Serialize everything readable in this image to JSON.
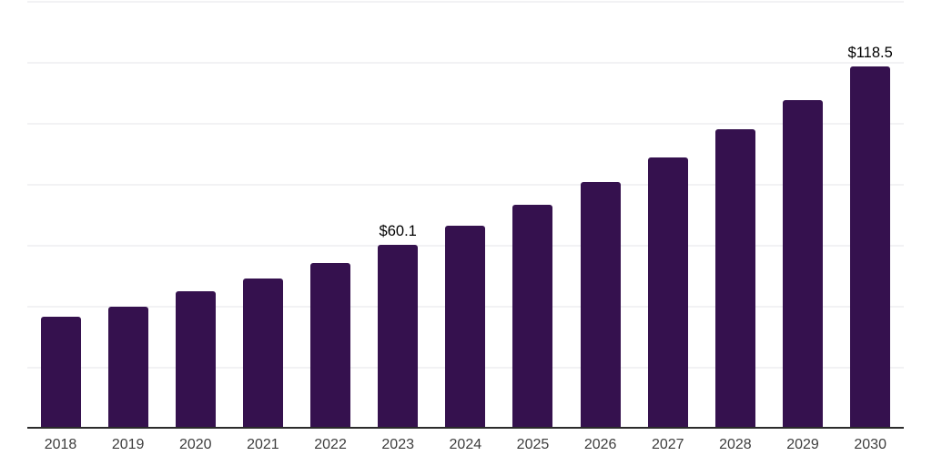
{
  "chart_data": {
    "type": "bar",
    "categories": [
      "2018",
      "2019",
      "2020",
      "2021",
      "2022",
      "2023",
      "2024",
      "2025",
      "2026",
      "2027",
      "2028",
      "2029",
      "2030"
    ],
    "values": [
      36.4,
      39.7,
      44.8,
      49.0,
      54.0,
      60.1,
      66.3,
      73.1,
      80.6,
      88.7,
      97.9,
      107.5,
      118.5
    ],
    "data_labels": {
      "2023": "$60.1",
      "2030": "$118.5"
    },
    "value_prefix": "$",
    "xlabel": "",
    "ylabel": "",
    "ylim": [
      0,
      140
    ],
    "grid_step": 20,
    "grid": "horizontal-only",
    "legend_position": "none",
    "colors": {
      "bar": "#35114e",
      "axis_line": "#2b2b2b",
      "gridline": "#f2f2f4",
      "tick_label": "#3d3d3d",
      "data_label": "#000000"
    }
  }
}
